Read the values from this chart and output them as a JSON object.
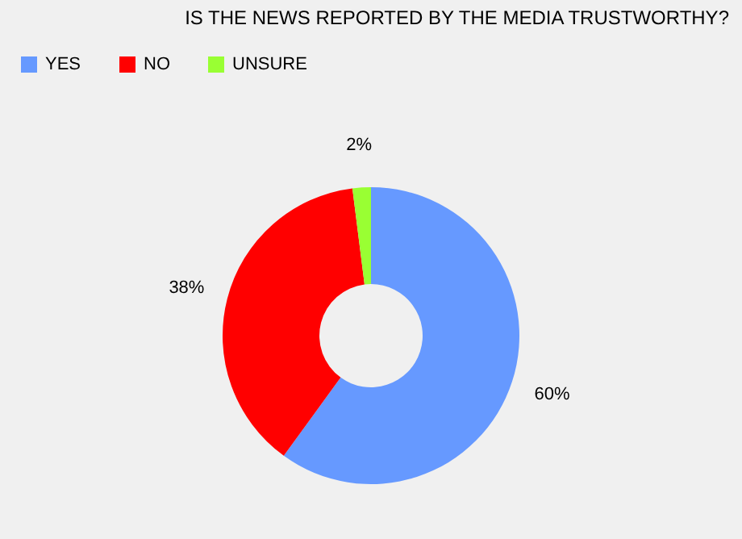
{
  "chart_data": {
    "type": "donut",
    "title": "IS THE NEWS REPORTED BY THE MEDIA TRUSTWORTHY?",
    "categories": [
      "YES",
      "NO",
      "UNSURE"
    ],
    "values": [
      60,
      38,
      2
    ],
    "colors": [
      "#6699ff",
      "#ff0000",
      "#99ff33"
    ],
    "value_labels": [
      "60%",
      "38%",
      "2%"
    ],
    "legend": "top left"
  }
}
